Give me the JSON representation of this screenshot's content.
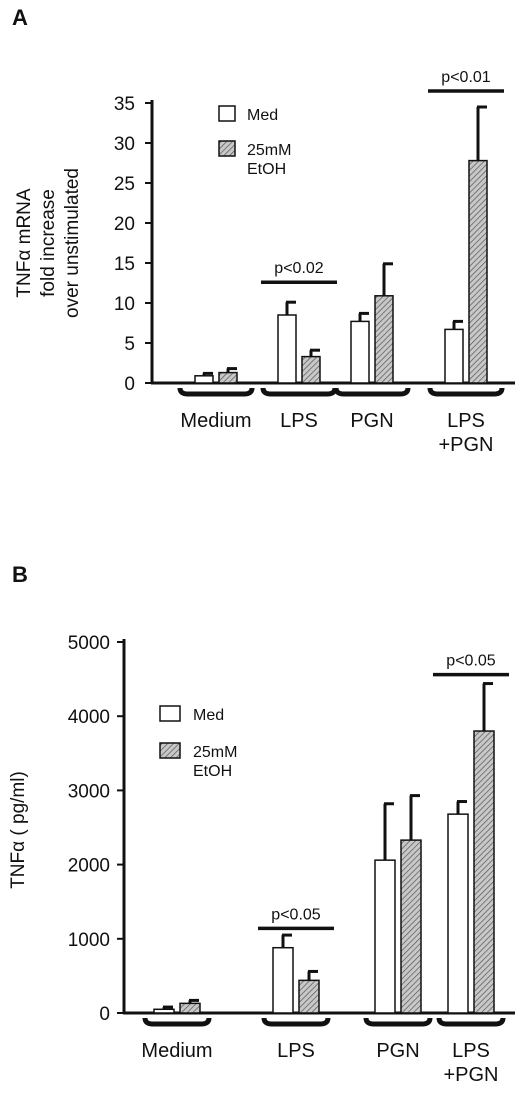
{
  "chart_data": [
    {
      "panel": "A",
      "type": "bar",
      "ylabel_lines": [
        "TNFα mRNA",
        "fold increase",
        "over unstimulated"
      ],
      "ylim": [
        0,
        35
      ],
      "yticks": [
        0,
        5,
        10,
        15,
        20,
        25,
        30,
        35
      ],
      "categories": [
        "Medium",
        "LPS",
        "PGN",
        "LPS\n+PGN"
      ],
      "series": [
        {
          "name": "Med",
          "values": [
            0.9,
            8.5,
            7.7,
            6.7
          ],
          "errors": [
            0.3,
            1.6,
            1.0,
            1.0
          ]
        },
        {
          "name": "25mM\nEtOH",
          "values": [
            1.3,
            3.3,
            10.9,
            27.8
          ],
          "errors": [
            0.5,
            0.8,
            4.0,
            6.7
          ]
        }
      ],
      "annotations": [
        {
          "category_index": 1,
          "text": "p<0.02",
          "y": 12.6
        },
        {
          "category_index": 3,
          "text": "p<0.01",
          "y": 36.5
        }
      ],
      "legend": "top-left"
    },
    {
      "panel": "B",
      "type": "bar",
      "ylabel_lines": [
        "TNFα ( pg/ml)"
      ],
      "ylim": [
        0,
        5000
      ],
      "yticks": [
        0,
        1000,
        2000,
        3000,
        4000,
        5000
      ],
      "categories": [
        "Medium",
        "LPS",
        "PGN",
        "LPS\n+PGN"
      ],
      "series": [
        {
          "name": "Med",
          "values": [
            50,
            880,
            2060,
            2680
          ],
          "errors": [
            30,
            170,
            760,
            170
          ]
        },
        {
          "name": "25mM\nEtOH",
          "values": [
            130,
            440,
            2330,
            3800
          ],
          "errors": [
            40,
            120,
            600,
            640
          ]
        }
      ],
      "annotations": [
        {
          "category_index": 1,
          "text": "p<0.05",
          "y": 1140
        },
        {
          "category_index": 3,
          "text": "p<0.05",
          "y": 4560
        }
      ],
      "legend": "top-left"
    }
  ]
}
